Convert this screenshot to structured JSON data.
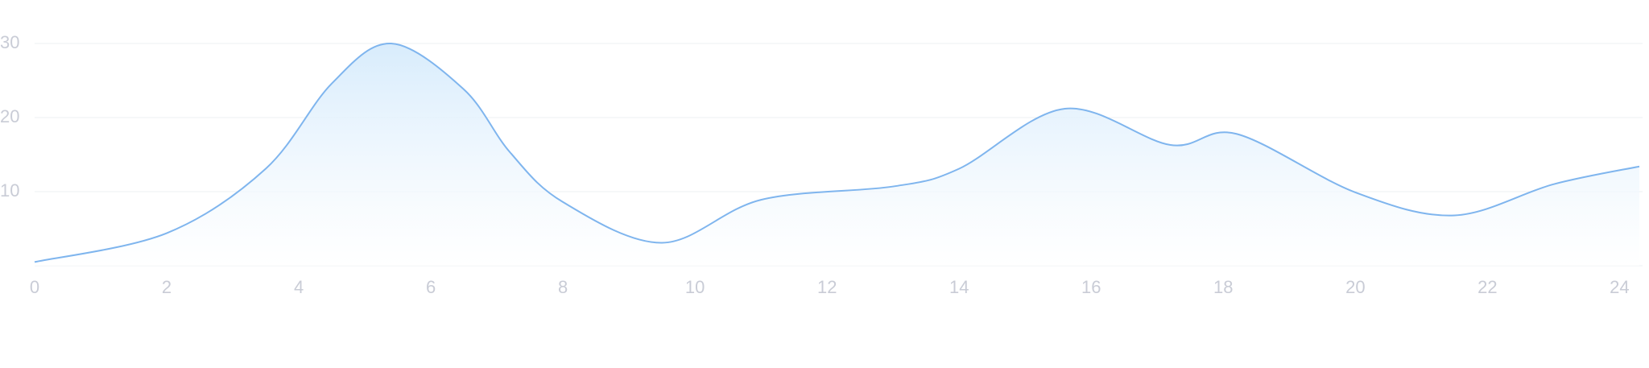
{
  "chart_data": {
    "type": "area",
    "x": [
      0,
      2,
      3.5,
      4.5,
      5.4,
      6.5,
      7.2,
      8,
      9.5,
      11,
      13,
      14,
      15.6,
      17.2,
      18.2,
      20,
      21.5,
      23,
      24.3
    ],
    "values": [
      0.5,
      4.4,
      13.1,
      24.6,
      30,
      23.8,
      15.3,
      8.6,
      3.1,
      8.9,
      10.7,
      13.1,
      21.2,
      16.3,
      17.8,
      9.9,
      6.8,
      11,
      13.4
    ],
    "color": "#7fb5ee",
    "xlim": [
      0,
      24.3
    ],
    "xticks": [
      0,
      2,
      4,
      6,
      8,
      10,
      12,
      14,
      16,
      18,
      20,
      22,
      24
    ],
    "ylim": [
      0,
      30
    ],
    "yticks": [
      10,
      20,
      30
    ],
    "grid": true
  }
}
